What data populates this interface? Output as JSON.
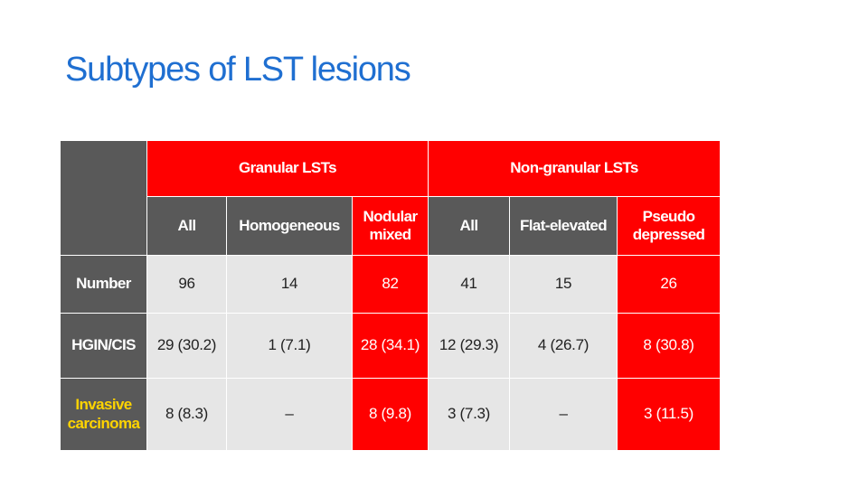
{
  "title": "Subtypes of LST lesions",
  "table": {
    "groups": {
      "granular": "Granular LSTs",
      "nongranular": "Non-granular LSTs"
    },
    "subheaders": [
      "All",
      "Homogeneous",
      "Nodular mixed",
      "All",
      "Flat-elevated",
      "Pseudo depressed"
    ],
    "rows": [
      {
        "label": "Number",
        "cells": [
          "96",
          "14",
          "82",
          "41",
          "15",
          "26"
        ]
      },
      {
        "label": "HGIN/CIS",
        "cells": [
          "29 (30.2)",
          "1 (7.1)",
          "28 (34.1)",
          "12 (29.3)",
          "4 (26.7)",
          "8 (30.8)"
        ]
      },
      {
        "label": "Invasive carcinoma",
        "cells": [
          "8 (8.3)",
          "–",
          "8 (9.8)",
          "3 (7.3)",
          "–",
          "3 (11.5)"
        ]
      }
    ]
  },
  "colors": {
    "title": "#1f6fd1",
    "red": "#ff0000",
    "dark_gray": "#595959",
    "light_gray": "#e6e6e6",
    "highlight_yellow": "#ffd400"
  }
}
